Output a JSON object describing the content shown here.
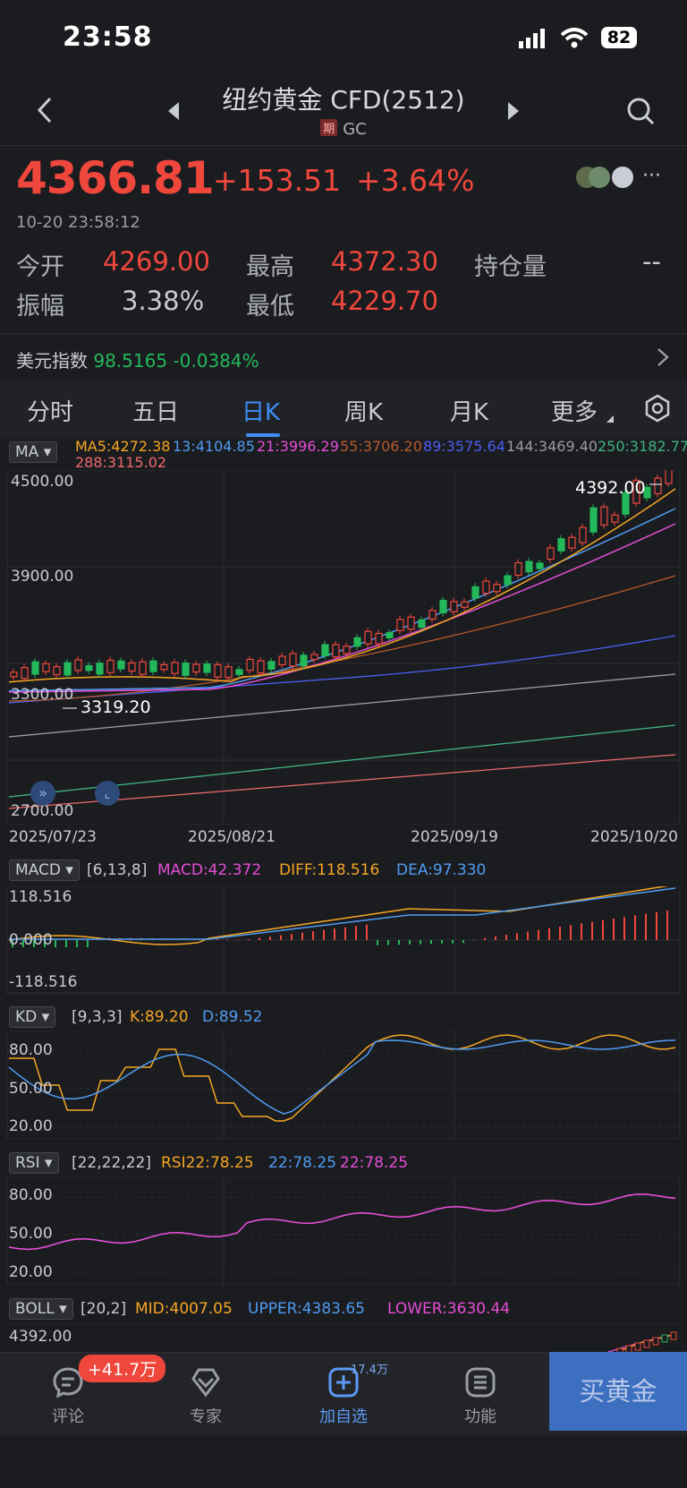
{
  "status": {
    "time": "23:58",
    "battery": "82"
  },
  "header": {
    "title": "纽约黄金 CFD(2512)",
    "badge": "期",
    "code": "GC"
  },
  "quote": {
    "price": "4366.81",
    "change": "+153.51",
    "pct": "+3.64%",
    "timestamp": "10-20 23:58:12",
    "open_label": "今开",
    "open": "4269.00",
    "high_label": "最高",
    "high": "4372.30",
    "oi_label": "持仓量",
    "oi": "--",
    "amp_label": "振幅",
    "amp": "3.38%",
    "low_label": "最低",
    "low": "4229.70"
  },
  "usd": {
    "label": "美元指数",
    "value": "98.5165",
    "change": "-0.0384%"
  },
  "tabs": [
    "分时",
    "五日",
    "日K",
    "周K",
    "月K",
    "更多"
  ],
  "ma": {
    "label": "MA",
    "ma5": "MA5:4272.38",
    "ma13": "13:4104.85",
    "ma21": "21:3996.29",
    "ma55": "55:3706.20",
    "ma89": "89:3575.64",
    "ma144": "144:3469.40",
    "ma250": "250:3182.77",
    "ma288": "288:3115.02"
  },
  "kchart": {
    "y_top": "4500.00",
    "y_mid": "3900.00",
    "y_low": "3300.00",
    "y_bottom": "2700.00",
    "max_label": "4392.00",
    "min_label": "3319.20",
    "dates": [
      "2025/07/23",
      "2025/08/21",
      "2025/09/19",
      "2025/10/20"
    ]
  },
  "macd": {
    "label": "MACD",
    "params": "[6,13,8]",
    "macd": "MACD:42.372",
    "diff": "DIFF:118.516",
    "dea": "DEA:97.330",
    "ytop": "118.516",
    "ymid": "0.000",
    "ybot": "-118.516"
  },
  "kd": {
    "label": "KD",
    "params": "[9,3,3]",
    "k": "K:89.20",
    "d": "D:89.52",
    "y1": "80.00",
    "y2": "50.00",
    "y3": "20.00"
  },
  "rsi": {
    "label": "RSI",
    "params": "[22,22,22]",
    "r1": "RSI22:78.25",
    "r2": "22:78.25",
    "r3": "22:78.25",
    "y1": "80.00",
    "y2": "50.00",
    "y3": "20.00"
  },
  "boll": {
    "label": "BOLL",
    "params": "[20,2]",
    "mid": "MID:4007.05",
    "upper": "UPPER:4383.65",
    "lower": "LOWER:3630.44",
    "ytop": "4392.00"
  },
  "nav": {
    "comment": "评论",
    "comment_badge": "+41.7万",
    "expert": "专家",
    "add": "加自选",
    "add_badge": "17.4万",
    "func": "功能",
    "buy": "买黄金"
  },
  "colors": {
    "up": "#f0473d",
    "down": "#23b85a",
    "accent": "#3d8ef5"
  }
}
